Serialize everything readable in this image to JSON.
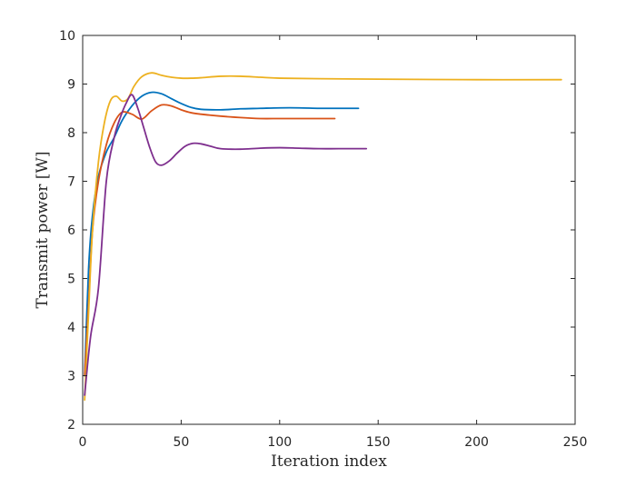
{
  "chart_data": {
    "type": "line",
    "title": "",
    "xlabel": "Iteration index",
    "ylabel": "Transmit power [W]",
    "xlim": [
      0,
      250
    ],
    "ylim": [
      2,
      10
    ],
    "xticks": [
      0,
      50,
      100,
      150,
      200,
      250
    ],
    "yticks": [
      2,
      3,
      4,
      5,
      6,
      7,
      8,
      9,
      10
    ],
    "xtick_labels": [
      "0",
      "50",
      "100",
      "150",
      "200",
      "250"
    ],
    "ytick_labels": [
      "2",
      "3",
      "4",
      "5",
      "6",
      "7",
      "8",
      "9",
      "10"
    ],
    "grid": false,
    "legend": "none",
    "series": [
      {
        "color": "#0072BD",
        "x": [
          1,
          3,
          5,
          8,
          12,
          16,
          20,
          25,
          30,
          35,
          40,
          45,
          50,
          55,
          60,
          70,
          80,
          90,
          100,
          110,
          120,
          130,
          140
        ],
        "y": [
          3.0,
          5.2,
          6.3,
          7.1,
          7.6,
          7.9,
          8.25,
          8.55,
          8.75,
          8.83,
          8.8,
          8.7,
          8.6,
          8.52,
          8.48,
          8.47,
          8.49,
          8.5,
          8.51,
          8.51,
          8.5,
          8.5,
          8.5
        ]
      },
      {
        "color": "#D95319",
        "x": [
          1,
          3,
          5,
          8,
          12,
          16,
          20,
          25,
          30,
          35,
          40,
          45,
          50,
          55,
          60,
          70,
          80,
          90,
          100,
          110,
          120,
          128
        ],
        "y": [
          3.0,
          4.5,
          6.0,
          7.0,
          7.75,
          8.2,
          8.42,
          8.38,
          8.28,
          8.45,
          8.57,
          8.55,
          8.47,
          8.41,
          8.38,
          8.34,
          8.31,
          8.29,
          8.29,
          8.29,
          8.29,
          8.29
        ]
      },
      {
        "color": "#EDB120",
        "x": [
          1,
          3,
          5,
          8,
          11,
          14,
          17,
          20,
          23,
          26,
          30,
          35,
          40,
          45,
          50,
          55,
          60,
          70,
          80,
          90,
          100,
          120,
          150,
          200,
          243
        ],
        "y": [
          2.5,
          4.3,
          6.0,
          7.4,
          8.2,
          8.65,
          8.75,
          8.65,
          8.7,
          8.95,
          9.15,
          9.23,
          9.18,
          9.14,
          9.12,
          9.12,
          9.13,
          9.16,
          9.16,
          9.14,
          9.12,
          9.11,
          9.1,
          9.09,
          9.09
        ]
      },
      {
        "color": "#7E2F8E",
        "x": [
          1,
          4,
          8,
          12,
          16,
          19,
          22,
          25,
          28,
          31,
          34,
          37,
          40,
          44,
          48,
          52,
          56,
          60,
          65,
          70,
          80,
          90,
          100,
          110,
          120,
          130,
          144
        ],
        "y": [
          2.6,
          3.8,
          4.8,
          7.0,
          7.9,
          8.3,
          8.6,
          8.78,
          8.5,
          8.1,
          7.7,
          7.4,
          7.33,
          7.42,
          7.58,
          7.72,
          7.78,
          7.77,
          7.72,
          7.67,
          7.66,
          7.68,
          7.69,
          7.68,
          7.67,
          7.67,
          7.67
        ]
      }
    ]
  }
}
